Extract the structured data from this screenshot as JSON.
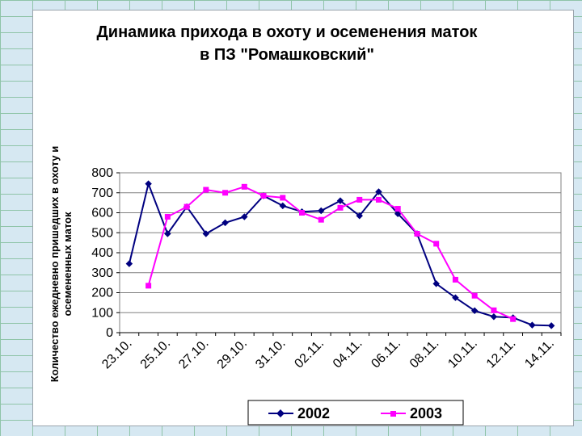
{
  "chart_data": {
    "type": "line",
    "title_lines": [
      "Динамика прихода в охоту и осеменения маток",
      "в ПЗ \"Ромашковский\""
    ],
    "ylabel_lines": [
      "Количество ежедневно пришедших в охоту и",
      "осемененных маток"
    ],
    "xlabel": "",
    "ylim": [
      0,
      800
    ],
    "yticks": [
      0,
      100,
      200,
      300,
      400,
      500,
      600,
      700,
      800
    ],
    "grid": true,
    "legend_position": "bottom",
    "x_tick_labels": [
      "23.10.",
      "25.10.",
      "27.10.",
      "29.10.",
      "31.10.",
      "02.11.",
      "04.11.",
      "06.11.",
      "08.11.",
      "10.11.",
      "12.11.",
      "14.11."
    ],
    "series": [
      {
        "name": "2002",
        "color": "#000080",
        "marker": "diamond",
        "values": [
          345,
          745,
          495,
          630,
          495,
          550,
          580,
          685,
          635,
          605,
          610,
          660,
          585,
          705,
          595,
          495,
          245,
          175,
          110,
          80,
          75,
          38,
          35
        ]
      },
      {
        "name": "2003",
        "color": "#ff00ff",
        "marker": "square",
        "values": [
          null,
          235,
          580,
          630,
          715,
          700,
          730,
          685,
          675,
          600,
          565,
          625,
          665,
          665,
          620,
          495,
          445,
          265,
          185,
          112,
          68,
          null,
          null
        ]
      }
    ]
  }
}
